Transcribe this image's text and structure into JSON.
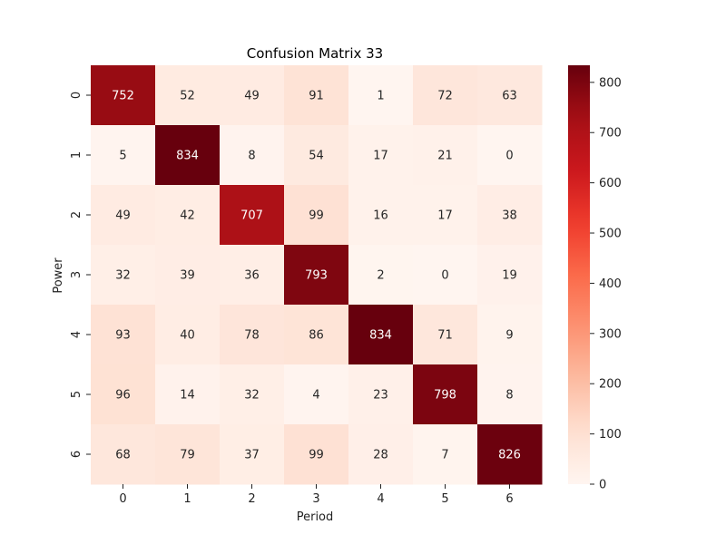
{
  "chart_data": {
    "type": "heatmap",
    "title": "Confusion Matrix 33",
    "xlabel": "Period",
    "ylabel": "Power",
    "x_categories": [
      "0",
      "1",
      "2",
      "3",
      "4",
      "5",
      "6"
    ],
    "y_categories": [
      "0",
      "1",
      "2",
      "3",
      "4",
      "5",
      "6"
    ],
    "values": [
      [
        752,
        52,
        49,
        91,
        1,
        72,
        63
      ],
      [
        5,
        834,
        8,
        54,
        17,
        21,
        0
      ],
      [
        49,
        42,
        707,
        99,
        16,
        17,
        38
      ],
      [
        32,
        39,
        36,
        793,
        2,
        0,
        19
      ],
      [
        93,
        40,
        78,
        86,
        834,
        71,
        9
      ],
      [
        96,
        14,
        32,
        4,
        23,
        798,
        8
      ],
      [
        68,
        79,
        37,
        99,
        28,
        7,
        826
      ]
    ],
    "colorbar": {
      "colormap": "Reds",
      "min": 0,
      "max": 834,
      "ticks": [
        0,
        100,
        200,
        300,
        400,
        500,
        600,
        700,
        800
      ]
    }
  }
}
